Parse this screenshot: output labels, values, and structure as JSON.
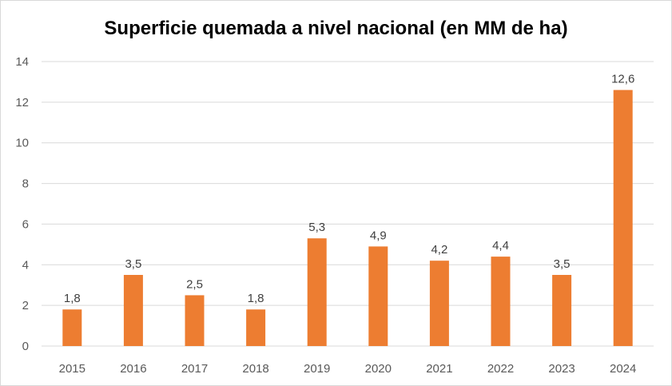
{
  "chart_data": {
    "type": "bar",
    "title": "Superficie quemada a nivel nacional (en MM de ha)",
    "categories": [
      "2015",
      "2016",
      "2017",
      "2018",
      "2019",
      "2020",
      "2021",
      "2022",
      "2023",
      "2024"
    ],
    "values": [
      1.8,
      3.5,
      2.5,
      1.8,
      5.3,
      4.9,
      4.2,
      4.4,
      3.5,
      12.6
    ],
    "data_labels": [
      "1,8",
      "3,5",
      "2,5",
      "1,8",
      "5,3",
      "4,9",
      "4,2",
      "4,4",
      "3,5",
      "12,6"
    ],
    "xlabel": "",
    "ylabel": "",
    "ylim": [
      0,
      14
    ],
    "yticks": [
      0,
      2,
      4,
      6,
      8,
      10,
      12,
      14
    ],
    "grid": true,
    "legend": "none",
    "bar_color": "#ED7D31"
  }
}
